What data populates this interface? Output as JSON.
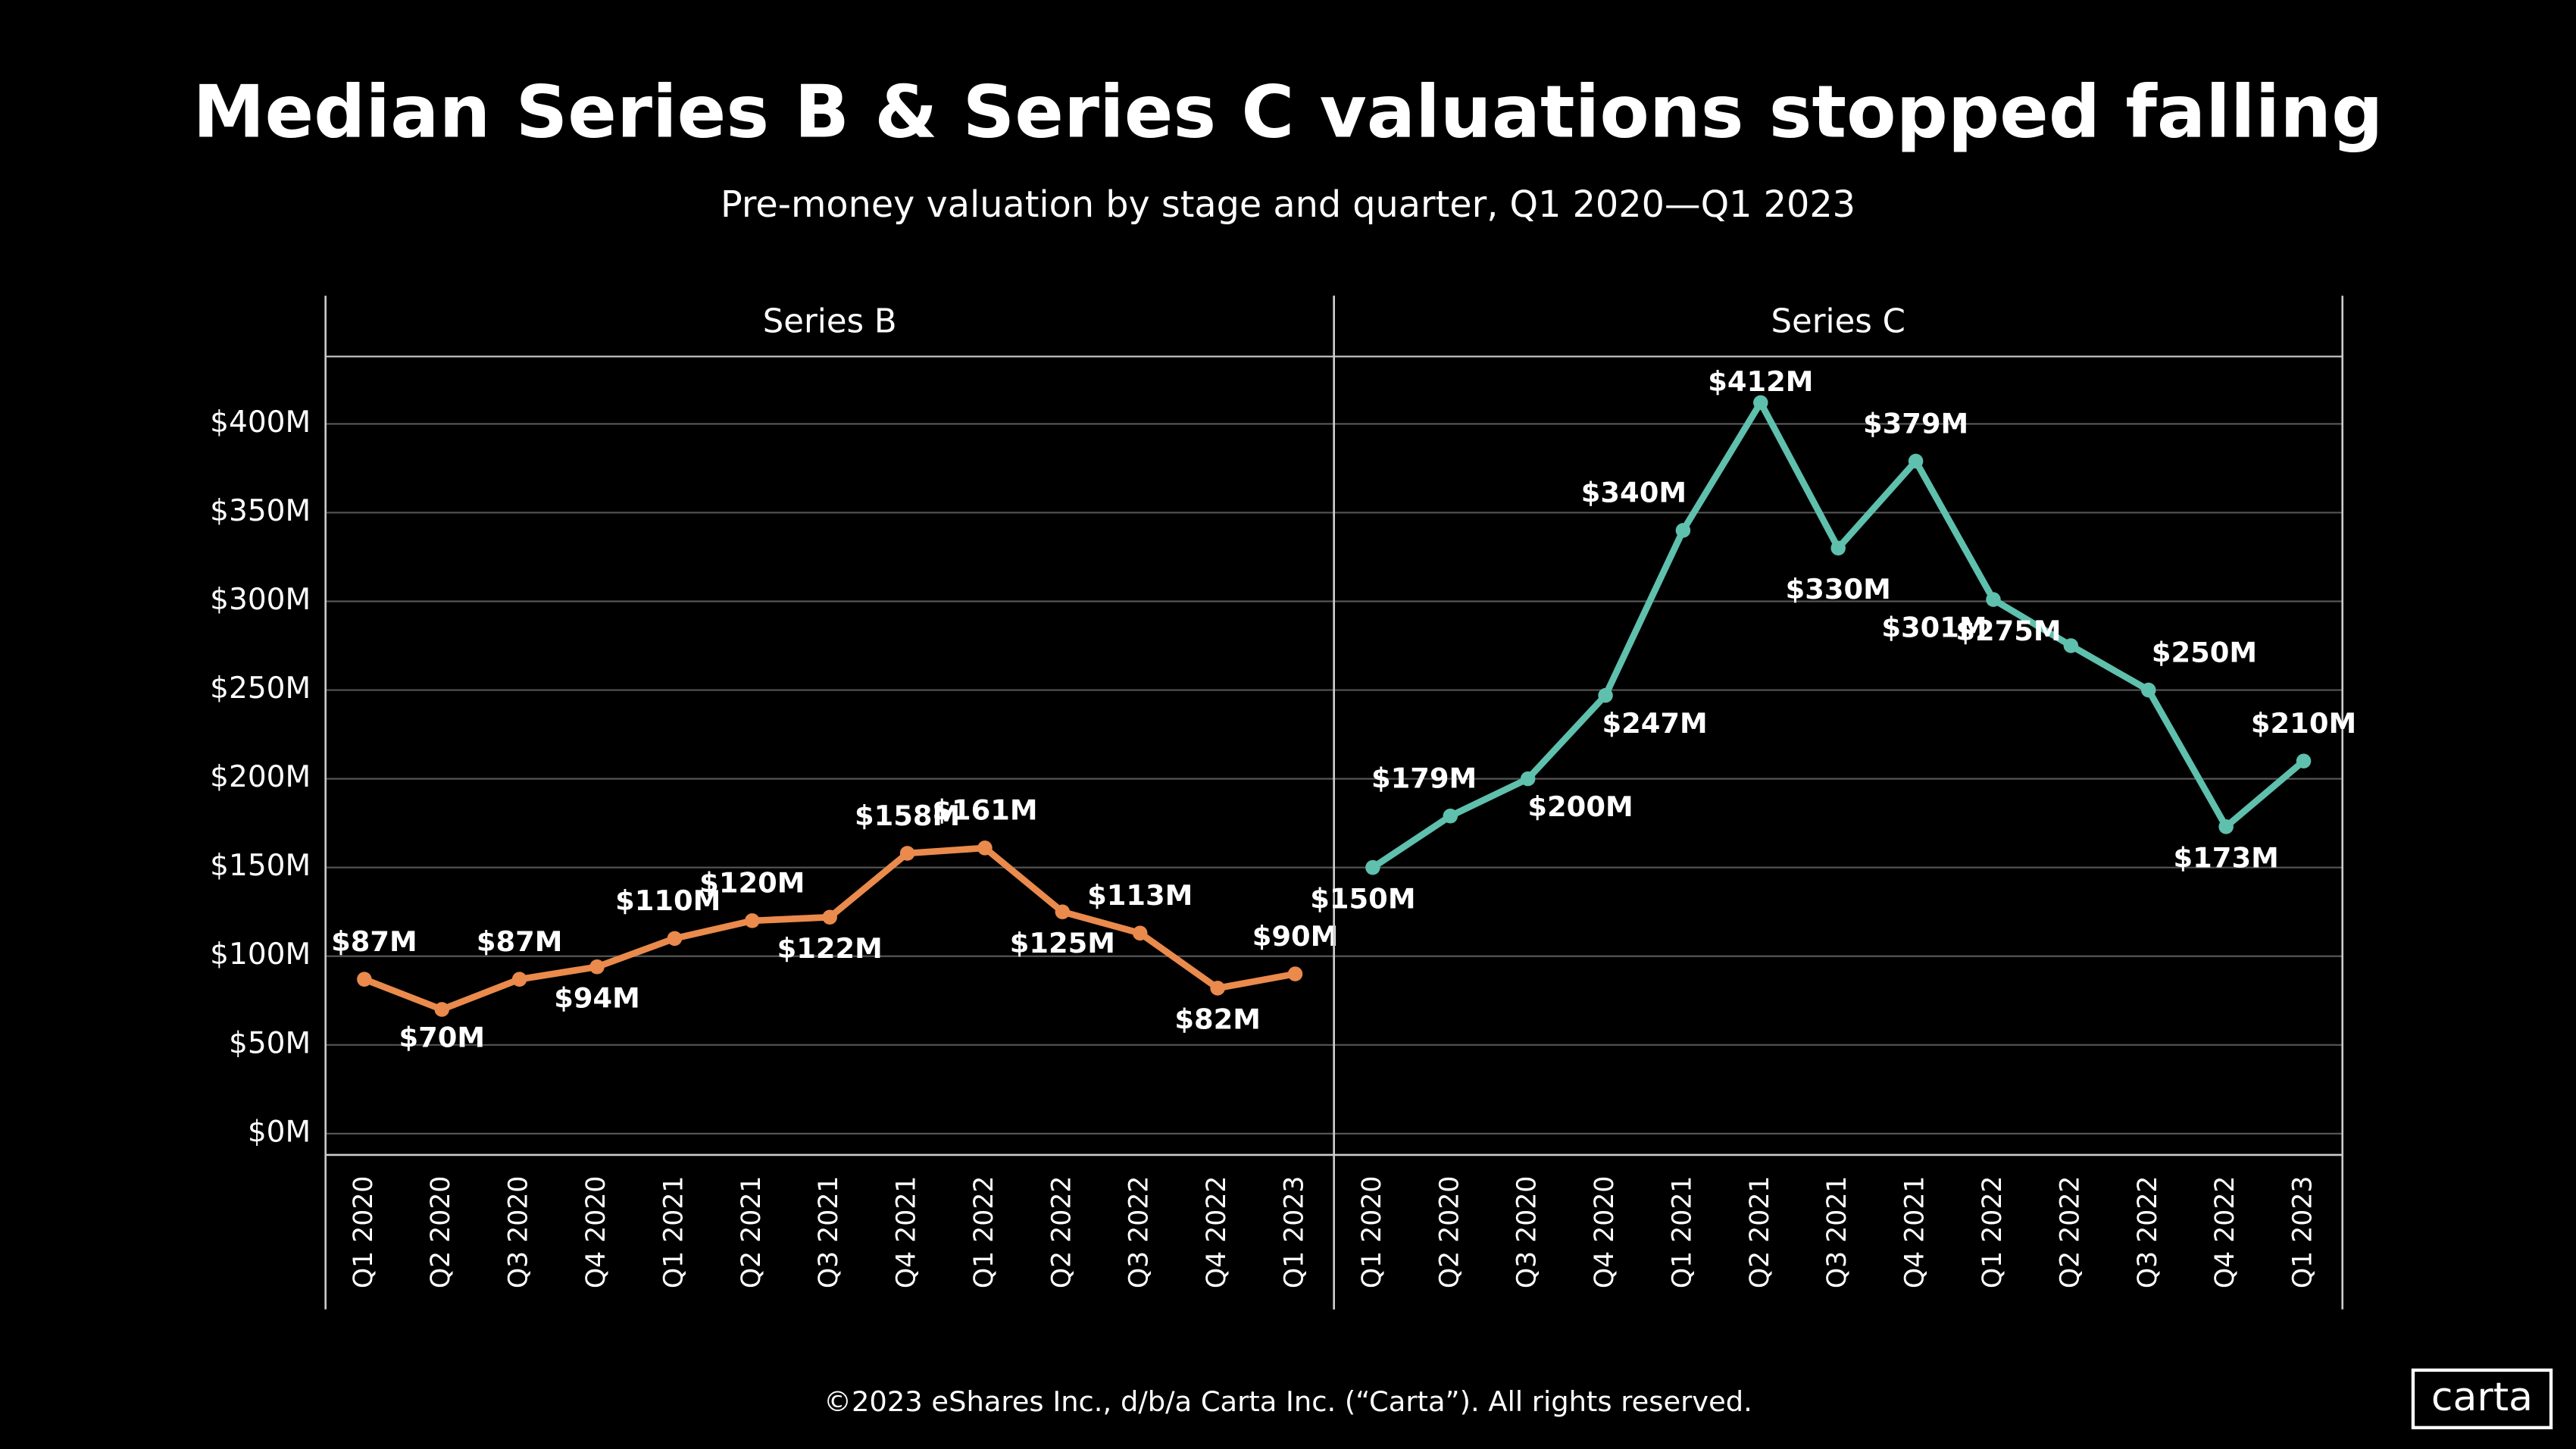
{
  "title": "Median Series B & Series C valuations stopped falling",
  "subtitle": "Pre-money valuation by stage and quarter, Q1 2020—Q1 2023",
  "footer": "©2023 eShares Inc., d/b/a Carta Inc. (“Carta”). All rights reserved.",
  "logo": "carta",
  "chart_data": [
    {
      "type": "line",
      "title": "Series B",
      "color": "#ea8a4c",
      "categories": [
        "Q1 2020",
        "Q2 2020",
        "Q3 2020",
        "Q4 2020",
        "Q1 2021",
        "Q2 2021",
        "Q3 2021",
        "Q4 2021",
        "Q1 2022",
        "Q2 2022",
        "Q3 2022",
        "Q4 2022",
        "Q1 2023"
      ],
      "values": [
        87,
        70,
        87,
        94,
        110,
        120,
        122,
        158,
        161,
        125,
        113,
        82,
        90
      ],
      "value_labels": [
        "$87M",
        "$70M",
        "$87M",
        "$94M",
        "$110M",
        "$120M",
        "$122M",
        "$158M",
        "$161M",
        "$125M",
        "$113M",
        "$82M",
        "$90M"
      ],
      "ylim": [
        -12,
        438
      ],
      "yticks": [
        {
          "value": 0,
          "label": "$0M"
        },
        {
          "value": 50,
          "label": "$50M"
        },
        {
          "value": 100,
          "label": "$100M"
        },
        {
          "value": 150,
          "label": "$150M"
        },
        {
          "value": 200,
          "label": "$200M"
        },
        {
          "value": 250,
          "label": "$250M"
        },
        {
          "value": 300,
          "label": "$300M"
        },
        {
          "value": 350,
          "label": "$350M"
        },
        {
          "value": 400,
          "label": "$400M"
        }
      ],
      "grid": true
    },
    {
      "type": "line",
      "title": "Series C",
      "color": "#5ec0ad",
      "categories": [
        "Q1 2020",
        "Q2 2020",
        "Q3 2020",
        "Q4 2020",
        "Q1 2021",
        "Q2 2021",
        "Q3 2021",
        "Q4 2021",
        "Q1 2022",
        "Q2 2022",
        "Q3 2022",
        "Q4 2022",
        "Q1 2023"
      ],
      "values": [
        150,
        179,
        200,
        247,
        340,
        412,
        330,
        379,
        301,
        275,
        250,
        173,
        210
      ],
      "value_labels": [
        "$150M",
        "$179M",
        "$200M",
        "$247M",
        "$340M",
        "$412M",
        "$330M",
        "$379M",
        "$301M",
        "$275M",
        "$250M",
        "$173M",
        "$210M"
      ],
      "ylim": [
        -12,
        438
      ],
      "grid": true
    }
  ]
}
